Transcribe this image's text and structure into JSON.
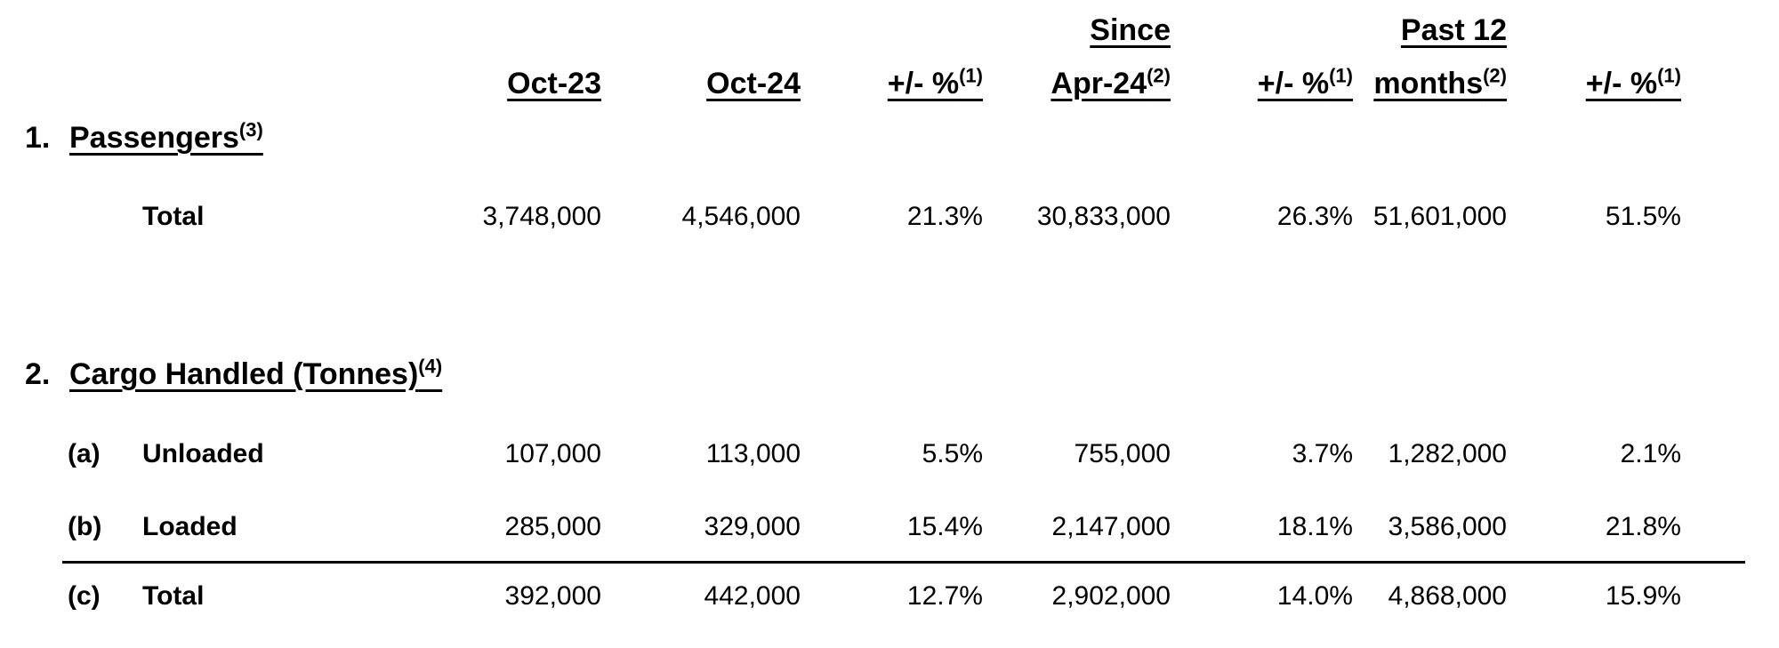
{
  "header": {
    "col_oct23": "Oct-23",
    "col_oct24": "Oct-24",
    "col_change1": "+/- %",
    "col_change1_note": "(1)",
    "col_since_line1": "Since",
    "col_since_line2": "Apr-24",
    "col_since_note": "(2)",
    "col_change2": "+/- %",
    "col_change2_note": "(1)",
    "col_past12_line1": "Past 12",
    "col_past12_line2": "months",
    "col_past12_note": "(2)",
    "col_change3": "+/- %",
    "col_change3_note": "(1)"
  },
  "section1": {
    "number": "1.",
    "title": "Passengers",
    "note": "(3)",
    "rows": [
      {
        "prefix": "",
        "label": "Total",
        "oct23": "3,748,000",
        "oct24": "4,546,000",
        "change1": "21.3%",
        "since_apr24": "30,833,000",
        "change2": "26.3%",
        "past12": "51,601,000",
        "change3": "51.5%"
      }
    ]
  },
  "section2": {
    "number": "2.",
    "title": "Cargo Handled (Tonnes)",
    "note": "(4)",
    "rows": [
      {
        "prefix": "(a)",
        "label": "Unloaded",
        "oct23": "107,000",
        "oct24": "113,000",
        "change1": "5.5%",
        "since_apr24": "755,000",
        "change2": "3.7%",
        "past12": "1,282,000",
        "change3": "2.1%"
      },
      {
        "prefix": "(b)",
        "label": "Loaded",
        "oct23": "285,000",
        "oct24": "329,000",
        "change1": "15.4%",
        "since_apr24": "2,147,000",
        "change2": "18.1%",
        "past12": "3,586,000",
        "change3": "21.8%"
      },
      {
        "prefix": "(c)",
        "label": "Total",
        "oct23": "392,000",
        "oct24": "442,000",
        "change1": "12.7%",
        "since_apr24": "2,902,000",
        "change2": "14.0%",
        "past12": "4,868,000",
        "change3": "15.9%"
      }
    ]
  }
}
